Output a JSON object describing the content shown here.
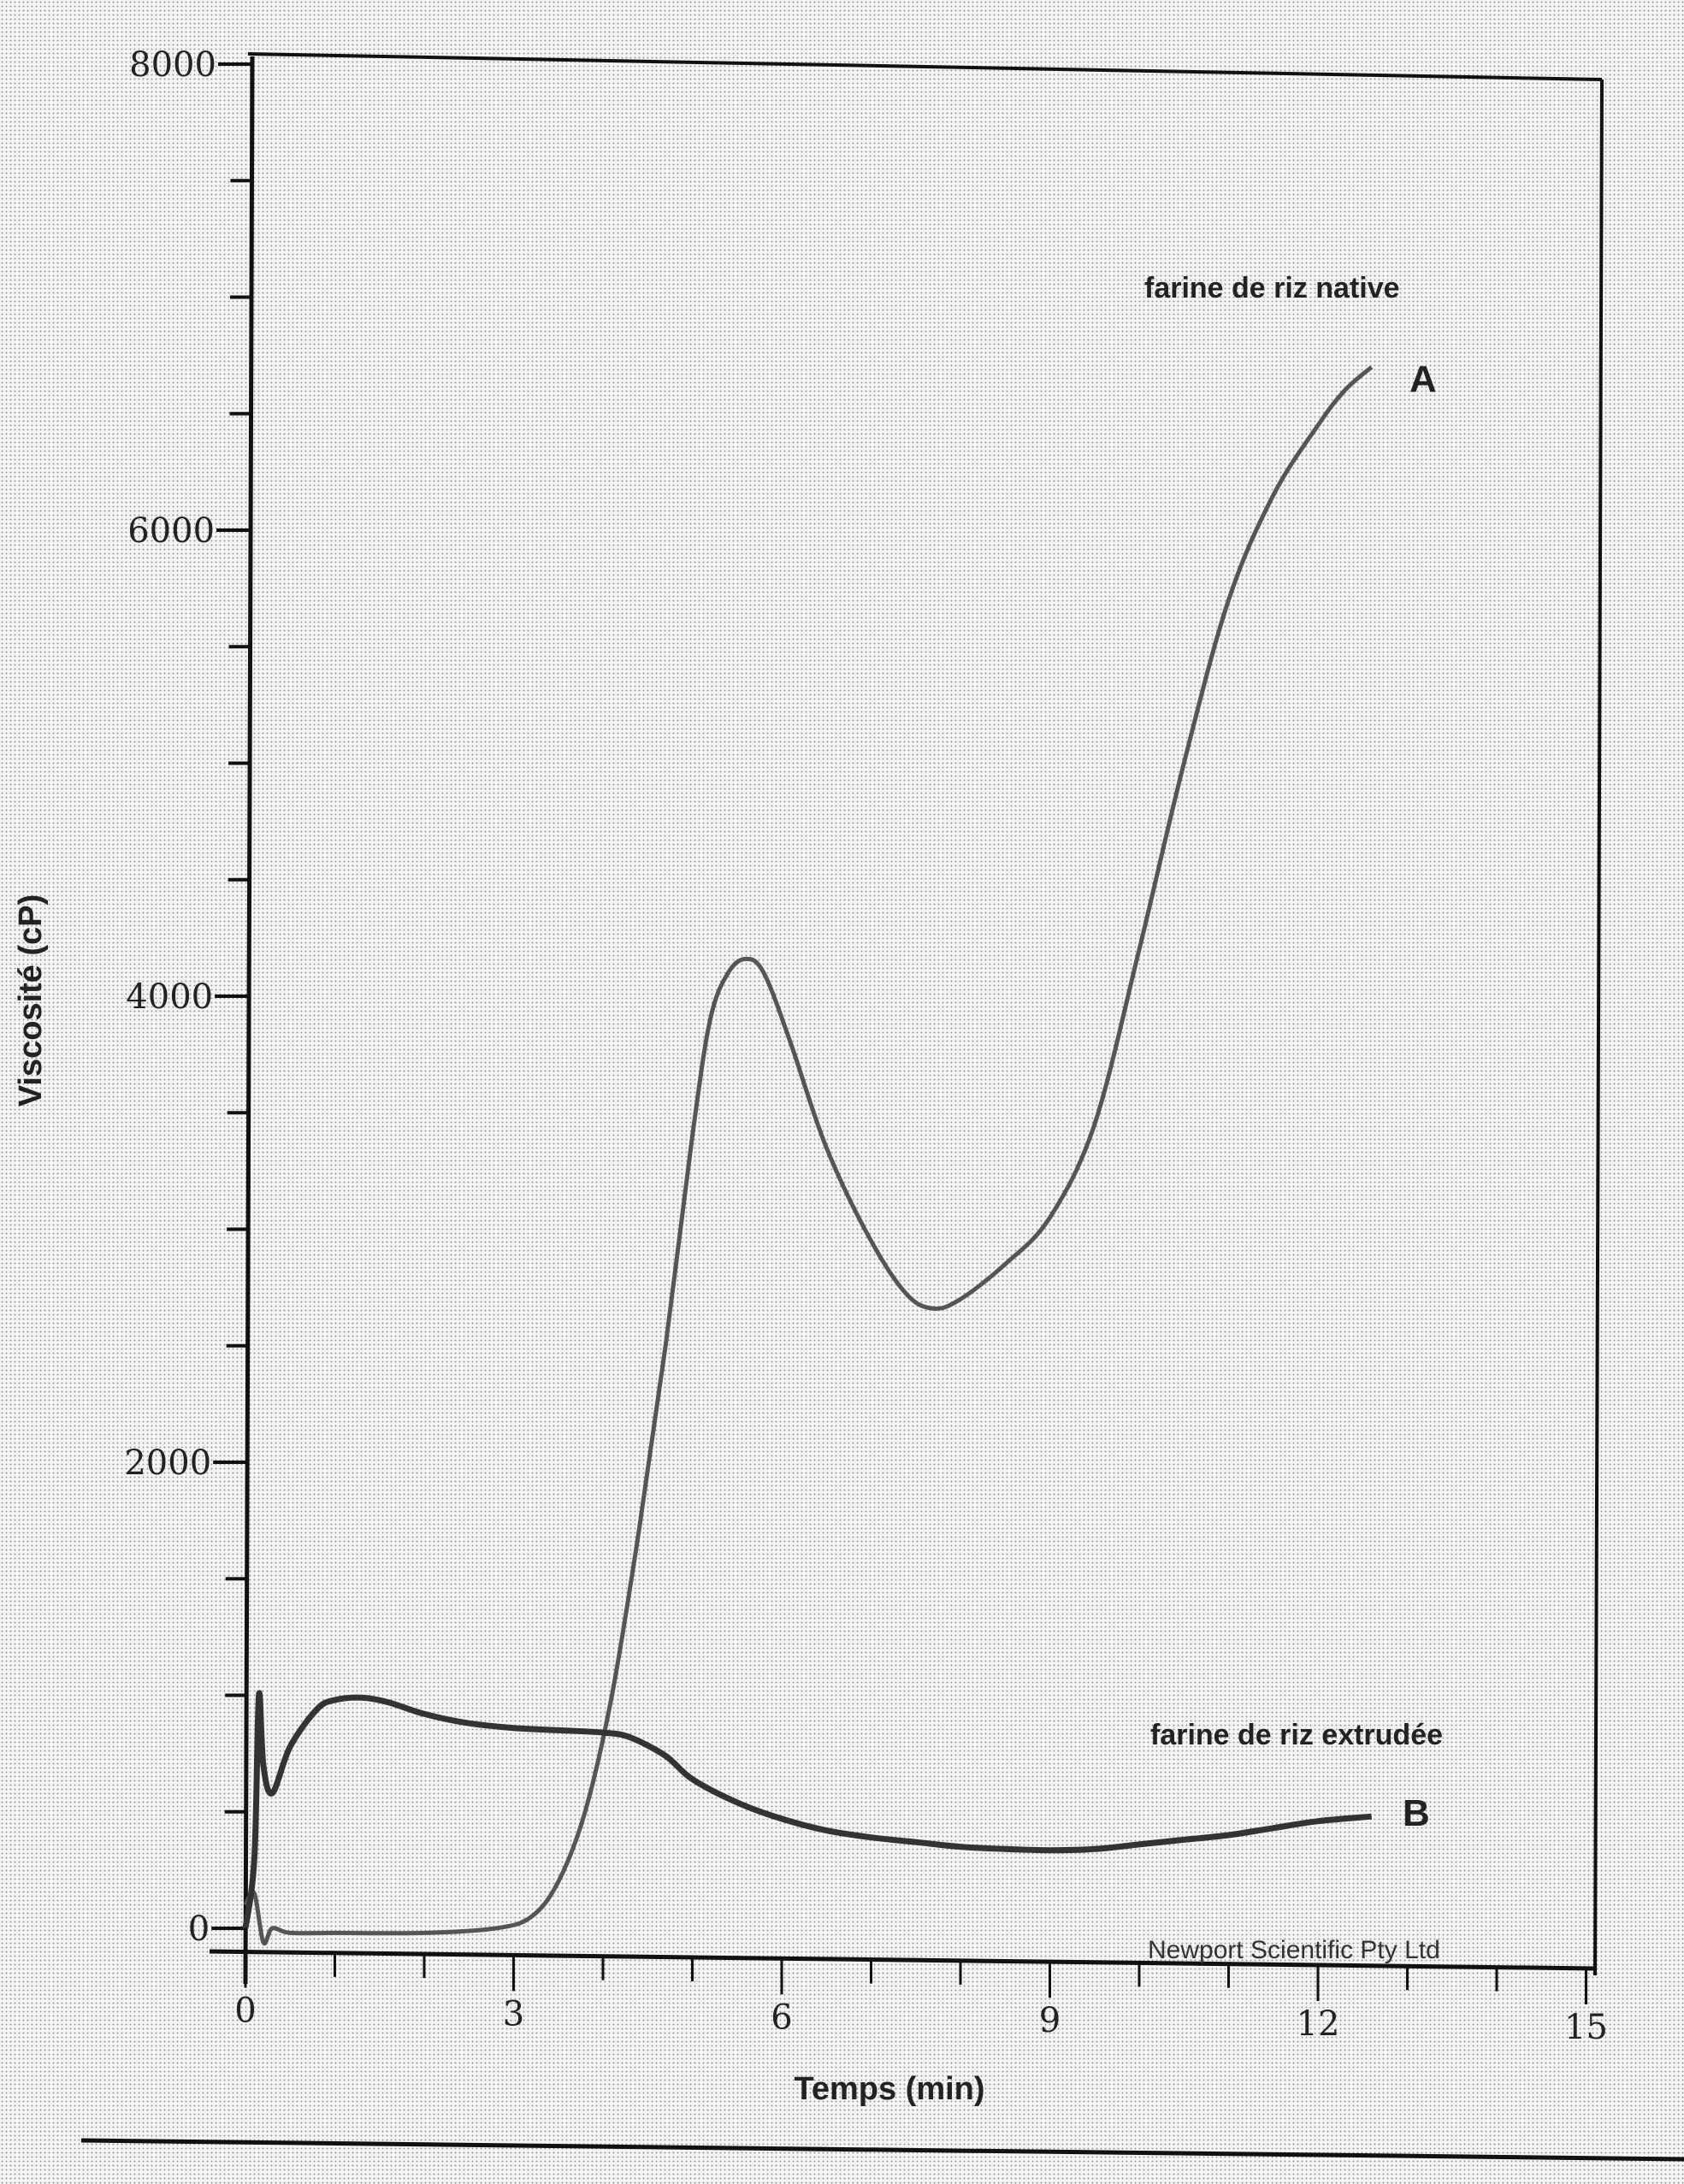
{
  "chart_data": {
    "type": "line",
    "title": "",
    "xlabel": "Temps (min)",
    "ylabel": "Viscosité (cP)",
    "xlim": [
      0,
      15
    ],
    "ylim": [
      0,
      8000
    ],
    "x_ticks": [
      0,
      3,
      6,
      9,
      12,
      15
    ],
    "y_ticks": [
      0,
      2000,
      4000,
      6000,
      8000
    ],
    "x_tick_labels": [
      "0",
      "3",
      "6",
      "9",
      "12",
      "15"
    ],
    "y_tick_labels": [
      "0",
      "2000",
      "4000",
      "6000",
      "8000"
    ],
    "grid": false,
    "series": [
      {
        "name": "farine de riz native",
        "label": "A",
        "x": [
          0.0,
          0.1,
          0.2,
          0.3,
          0.5,
          1.0,
          2.0,
          2.8,
          3.2,
          3.5,
          3.8,
          4.1,
          4.4,
          4.7,
          5.0,
          5.2,
          5.4,
          5.6,
          5.8,
          6.1,
          6.5,
          7.0,
          7.4,
          7.7,
          8.0,
          8.5,
          9.0,
          9.5,
          10.0,
          10.5,
          11.0,
          11.5,
          12.0,
          12.3,
          12.6
        ],
        "values": [
          100,
          150,
          -60,
          0,
          -20,
          -20,
          -20,
          0,
          50,
          200,
          500,
          1000,
          1700,
          2500,
          3400,
          3900,
          4100,
          4160,
          4100,
          3800,
          3350,
          2950,
          2720,
          2660,
          2700,
          2850,
          3050,
          3450,
          4200,
          5000,
          5700,
          6150,
          6450,
          6600,
          6700
        ]
      },
      {
        "name": "farine de riz extrudée",
        "label": "B",
        "x": [
          0.0,
          0.1,
          0.15,
          0.2,
          0.3,
          0.5,
          0.8,
          1.0,
          1.3,
          1.6,
          2.0,
          2.5,
          3.0,
          3.5,
          4.0,
          4.3,
          4.7,
          5.0,
          5.5,
          6.0,
          6.5,
          7.0,
          7.5,
          8.0,
          8.5,
          9.0,
          9.5,
          10.0,
          10.5,
          11.0,
          11.5,
          12.0,
          12.6
        ],
        "values": [
          0,
          300,
          1000,
          700,
          580,
          780,
          940,
          980,
          990,
          970,
          920,
          880,
          860,
          850,
          840,
          820,
          740,
          640,
          540,
          470,
          420,
          390,
          370,
          350,
          340,
          335,
          340,
          360,
          380,
          400,
          430,
          460,
          480
        ]
      }
    ],
    "annotations": [
      "farine de riz native",
      "A",
      "farine de riz extrudée",
      "B",
      "Newport Scientific Pty Ltd"
    ],
    "legend_position": "inline annotations near curve ends (right side)"
  },
  "labels": {
    "xlabel": "Temps (min)",
    "ylabel": "Viscosité (cP)",
    "annot_a": "farine de riz native",
    "letter_a": "A",
    "annot_b": "farine de riz extrudée",
    "letter_b": "B",
    "credit": "Newport Scientific Pty Ltd"
  }
}
